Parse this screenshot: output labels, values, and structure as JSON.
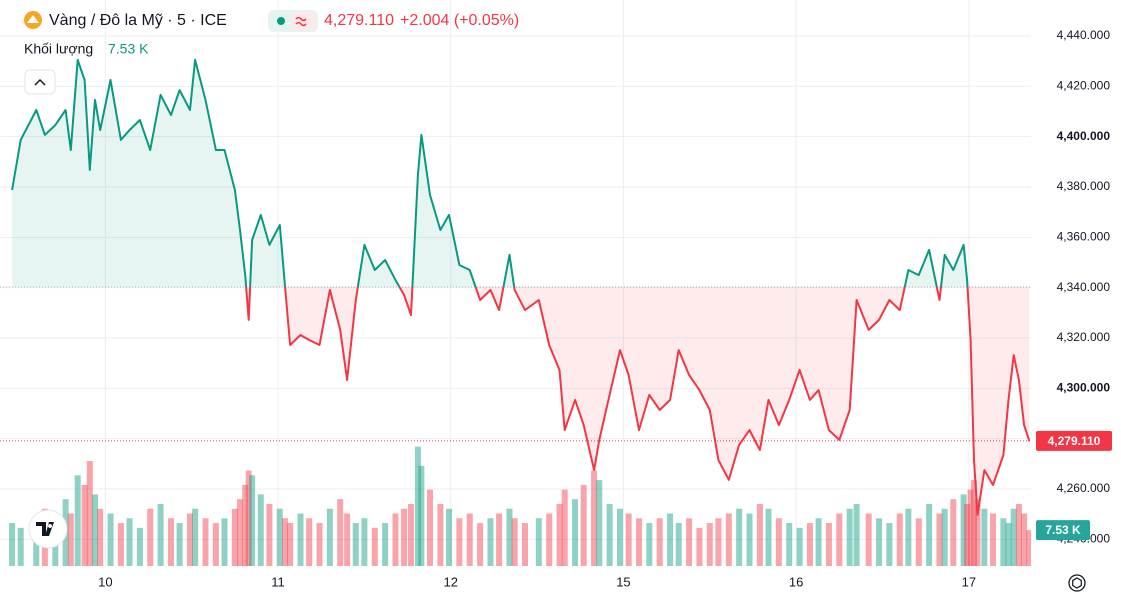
{
  "chart_data": {
    "type": "baseline",
    "title": "Vàng / Đô la Mỹ · 5 · ICE",
    "change": "+2.004 (+0.05%)",
    "volume_title": "Khối lượng",
    "last_price": {
      "value": 4279.11,
      "label": "4,279.110"
    },
    "baseline": 4340.3,
    "up_color": "#089981",
    "down_color": "#f23645",
    "grid": true,
    "xlim": [
      -0.61,
      5.36
    ],
    "ylim": [
      4229.4,
      4454.3
    ],
    "xticks": [
      {
        "value": 0,
        "label": "10"
      },
      {
        "value": 1,
        "label": "11"
      },
      {
        "value": 2,
        "label": "12"
      },
      {
        "value": 3,
        "label": "15"
      },
      {
        "value": 4,
        "label": "16"
      },
      {
        "value": 5,
        "label": "17"
      }
    ],
    "yticks": [
      {
        "value": 4440,
        "label": "4,440.000"
      },
      {
        "value": 4420,
        "label": "4,420.000"
      },
      {
        "value": 4400,
        "label": "4,400.000"
      },
      {
        "value": 4380,
        "label": "4,380.000"
      },
      {
        "value": 4360,
        "label": "4,360.000"
      },
      {
        "value": 4340,
        "label": "4,340.000"
      },
      {
        "value": 4320,
        "label": "4,320.000"
      },
      {
        "value": 4300,
        "label": "4,300.000"
      },
      {
        "value": 4280,
        "label": "4,280.000"
      },
      {
        "value": 4260,
        "label": "4,260.000"
      },
      {
        "value": 4240,
        "label": "4,240.000"
      }
    ],
    "x": [
      -0.54,
      -0.49,
      -0.4,
      -0.35,
      -0.29,
      -0.23,
      -0.2,
      -0.16,
      -0.12,
      -0.09,
      -0.06,
      -0.03,
      0.03,
      0.09,
      0.14,
      0.2,
      0.26,
      0.32,
      0.38,
      0.43,
      0.49,
      0.52,
      0.58,
      0.64,
      0.69,
      0.75,
      0.78,
      0.81,
      0.83,
      0.85,
      0.9,
      0.95,
      1.01,
      1.04,
      1.07,
      1.13,
      1.18,
      1.24,
      1.3,
      1.36,
      1.4,
      1.45,
      1.5,
      1.56,
      1.62,
      1.68,
      1.73,
      1.77,
      1.81,
      1.83,
      1.88,
      1.94,
      1.99,
      2.05,
      2.11,
      2.17,
      2.23,
      2.28,
      2.34,
      2.37,
      2.43,
      2.51,
      2.57,
      2.63,
      2.66,
      2.72,
      2.77,
      2.83,
      2.86,
      2.92,
      2.98,
      3.03,
      3.09,
      3.15,
      3.21,
      3.27,
      3.32,
      3.38,
      3.44,
      3.5,
      3.55,
      3.61,
      3.67,
      3.73,
      3.79,
      3.84,
      3.9,
      3.96,
      4.02,
      4.08,
      4.13,
      4.19,
      4.25,
      4.31,
      4.35,
      4.42,
      4.48,
      4.54,
      4.6,
      4.65,
      4.71,
      4.77,
      4.83,
      4.86,
      4.91,
      4.97,
      4.99,
      5.01,
      5.03,
      5.05,
      5.09,
      5.14,
      5.2,
      5.23,
      5.26,
      5.29,
      5.32,
      5.35
    ],
    "values": [
      4378.8,
      4398.7,
      4410.6,
      4400.7,
      4404.6,
      4410.6,
      4394.7,
      4430.5,
      4422.5,
      4386.8,
      4414.6,
      4402.6,
      4422.5,
      4398.7,
      4402.6,
      4406.6,
      4394.7,
      4416.6,
      4408.6,
      4418.5,
      4410.6,
      4430.5,
      4414.6,
      4394.7,
      4394.7,
      4378.8,
      4362.9,
      4345.0,
      4327.2,
      4358.9,
      4368.9,
      4357.0,
      4364.9,
      4341.1,
      4317.2,
      4321.2,
      4319.2,
      4317.2,
      4339.1,
      4323.2,
      4303.3,
      4335.1,
      4357.0,
      4347.0,
      4351.0,
      4343.0,
      4337.1,
      4329.1,
      4384.8,
      4400.7,
      4376.8,
      4362.9,
      4368.9,
      4349.0,
      4347.0,
      4335.1,
      4339.1,
      4331.1,
      4353.0,
      4339.1,
      4331.1,
      4335.1,
      4317.2,
      4307.3,
      4283.4,
      4295.4,
      4285.4,
      4267.5,
      4279.5,
      4297.4,
      4315.2,
      4305.3,
      4283.4,
      4297.4,
      4291.4,
      4295.4,
      4315.2,
      4305.3,
      4299.3,
      4291.4,
      4271.5,
      4263.6,
      4277.5,
      4283.4,
      4275.5,
      4295.4,
      4285.4,
      4295.4,
      4307.3,
      4295.4,
      4299.3,
      4283.4,
      4279.5,
      4291.4,
      4335.1,
      4323.2,
      4327.2,
      4335.1,
      4331.1,
      4347.0,
      4345.0,
      4355.0,
      4335.1,
      4353.0,
      4347.0,
      4357.0,
      4343.0,
      4319.2,
      4271.5,
      4249.7,
      4267.5,
      4261.6,
      4273.5,
      4295.4,
      4313.2,
      4303.3,
      4285.4,
      4279.1
    ],
    "volume": {
      "ylim": [
        0,
        35
      ],
      "last_label": "7.53 K",
      "values": [
        9,
        8,
        10,
        12,
        9,
        14,
        11,
        19,
        17,
        22,
        15,
        12,
        11,
        9,
        10,
        8,
        12,
        13,
        10,
        9,
        11,
        12,
        10,
        9,
        10,
        12,
        14,
        17,
        20,
        19,
        15,
        13,
        12,
        10,
        9,
        11,
        10,
        9,
        12,
        14,
        11,
        9,
        10,
        8,
        9,
        11,
        12,
        13,
        25,
        21,
        16,
        13,
        12,
        10,
        11,
        9,
        10,
        11,
        12,
        10,
        9,
        10,
        11,
        13,
        16,
        14,
        17,
        20,
        18,
        13,
        12,
        11,
        10,
        9,
        10,
        11,
        9,
        10,
        8,
        9,
        10,
        11,
        12,
        11,
        13,
        12,
        10,
        9,
        8,
        9,
        10,
        9,
        11,
        12,
        13,
        11,
        10,
        9,
        11,
        12,
        10,
        13,
        11,
        12,
        14,
        15,
        13,
        16,
        18,
        14,
        12,
        11,
        10,
        9,
        12,
        13,
        11,
        7.53
      ]
    }
  }
}
